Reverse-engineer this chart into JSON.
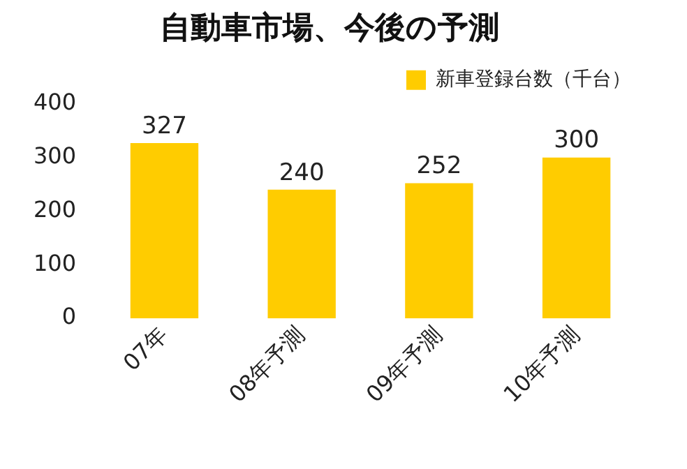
{
  "chart_data": {
    "type": "bar",
    "title": "自動車市場、今後の予測",
    "categories": [
      "07年",
      "08年予測",
      "09年予測",
      "10年予測"
    ],
    "series": [
      {
        "name": "新車登録台数（千台）",
        "color": "#ffcc00",
        "values": [
          327,
          240,
          252,
          300
        ]
      }
    ],
    "ylim": [
      0,
      400
    ],
    "yticks": [
      0,
      100,
      200,
      300,
      400
    ],
    "grid": false,
    "legend": "top right",
    "data_labels": true
  }
}
